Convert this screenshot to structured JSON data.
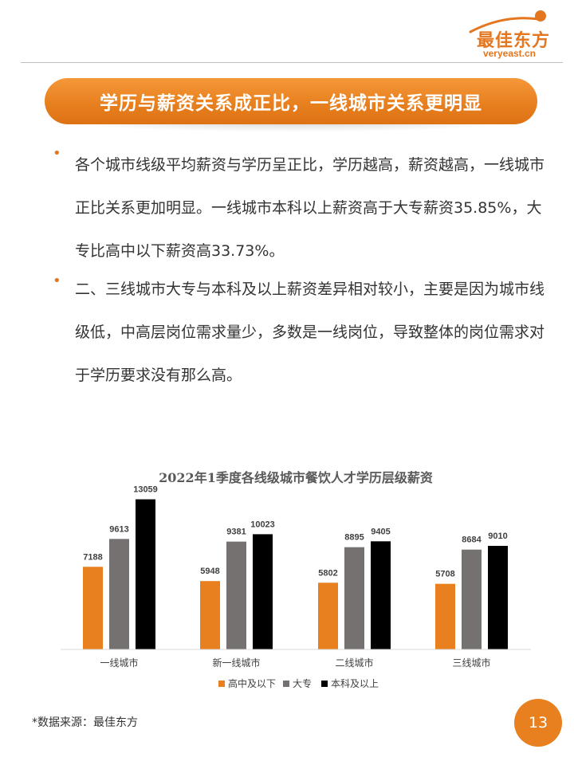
{
  "brand": {
    "name": "最佳东方",
    "url": "veryeast.cn",
    "color": "#e4761f"
  },
  "banner": {
    "title": "学历与薪资关系成正比，一线城市关系更明显"
  },
  "bullets": [
    "各个城市线级平均薪资与学历呈正比，学历越高，薪资越高，一线城市正比关系更加明显。一线城市本科以上薪资高于大专薪资35.85%，大专比高中以下薪资高33.73%。",
    "二、三线城市大专与本科及以上薪资差异相对较小，主要是因为城市线级低，中高层岗位需求量少，多数是一线岗位，导致整体的岗位需求对于学历要求没有那么高。"
  ],
  "chart_data": {
    "type": "bar",
    "title": "2022年1季度各线级城市餐饮人才学历层级薪资",
    "categories": [
      "一线城市",
      "新一线城市",
      "二线城市",
      "三线城市"
    ],
    "series": [
      {
        "name": "高中及以下",
        "color": "#e8801f",
        "values": [
          7188,
          5948,
          5802,
          5708
        ]
      },
      {
        "name": "大专",
        "color": "#767171",
        "values": [
          9613,
          9381,
          8895,
          8684
        ]
      },
      {
        "name": "本科及以上",
        "color": "#000000",
        "values": [
          13059,
          10023,
          9405,
          9010
        ]
      }
    ],
    "ylim": [
      0,
      14000
    ],
    "legend": "bottom",
    "grid": false
  },
  "footer": {
    "source": "*数据来源：最佳东方",
    "page_number": "13"
  }
}
